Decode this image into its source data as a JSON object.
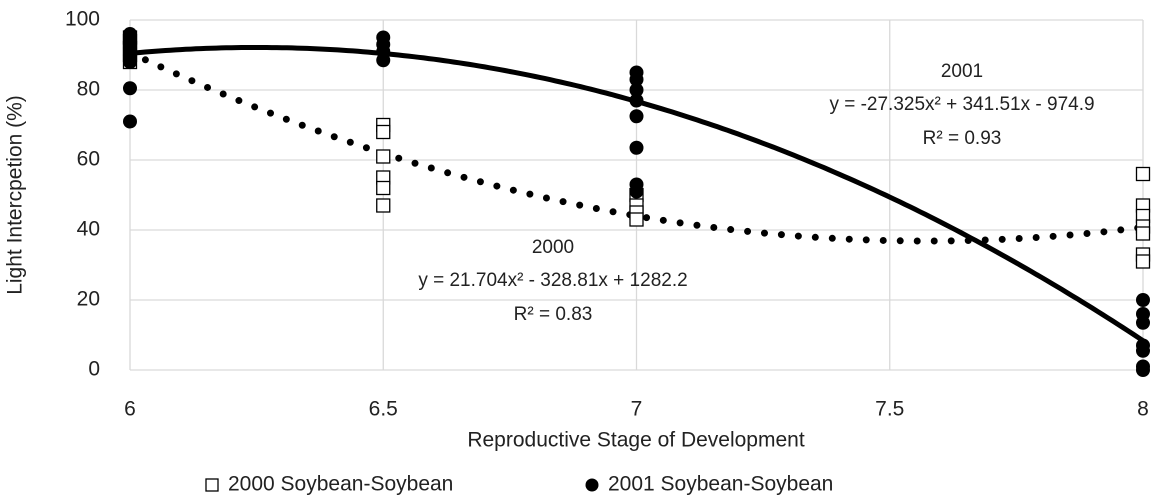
{
  "chart_data": {
    "type": "scatter",
    "x_label": "Reproductive Stage of Development",
    "y_label": "Light Intercpetion (%)",
    "xlim": [
      6,
      8
    ],
    "xticks": [
      6,
      6.5,
      7,
      7.5,
      8
    ],
    "ylim": [
      0,
      100
    ],
    "yticks": [
      0,
      20,
      40,
      60,
      80,
      100
    ],
    "grid": true,
    "legend": "bottom",
    "series": [
      {
        "name": "2000 Soybean-Soybean",
        "color": "#000000",
        "marker": "square-open",
        "x": [
          6,
          6,
          6,
          6,
          6,
          6.5,
          6.5,
          6.5,
          6.5,
          6.5,
          6.5,
          7,
          7,
          7,
          7,
          8,
          8,
          8,
          8,
          8,
          8,
          8
        ],
        "values": [
          88,
          90,
          92,
          94,
          95,
          70,
          68,
          61,
          55,
          52,
          47,
          50,
          47,
          45,
          43,
          56,
          47,
          44,
          41,
          39,
          33,
          31
        ]
      },
      {
        "name": "2001 Soybean-Soybean",
        "color": "#000000",
        "marker": "circle-filled",
        "x": [
          6,
          6,
          6,
          6,
          6,
          6,
          6,
          6.5,
          6.5,
          6.5,
          6.5,
          7,
          7,
          7,
          7,
          7,
          7,
          7,
          7,
          8,
          8,
          8,
          8,
          8,
          8,
          8
        ],
        "values": [
          96,
          94,
          92,
          90,
          88,
          80.5,
          71,
          95,
          93,
          91,
          88.5,
          85,
          83,
          80,
          77,
          72.5,
          63.5,
          53,
          51,
          20,
          16,
          13.5,
          7,
          5.5,
          1,
          0
        ]
      }
    ],
    "trendlines": [
      {
        "name": "2000",
        "equation": "y = 21.704x² - 328.81x + 1282.2",
        "r2": "R² = 0.83",
        "coefficients": [
          21.704,
          -328.81,
          1282.2
        ],
        "style": "dotted"
      },
      {
        "name": "2001",
        "equation": "y = -27.325x² + 341.51x - 974.9",
        "r2": "R² = 0.93",
        "coefficients": [
          -27.325,
          341.51,
          -974.9
        ],
        "style": "solid"
      }
    ]
  }
}
